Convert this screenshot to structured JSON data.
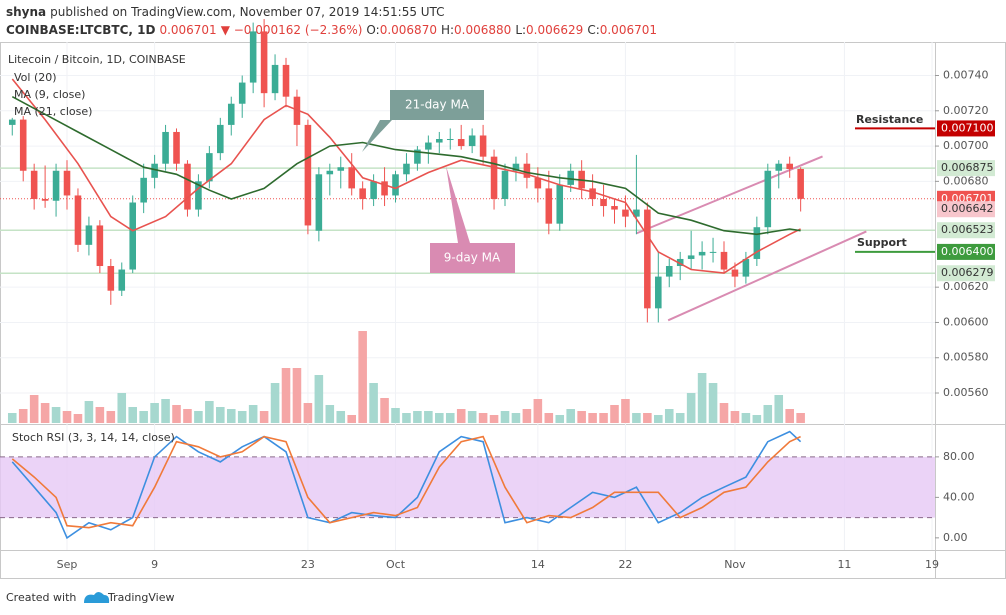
{
  "header": {
    "author": "shyna",
    "published": "published on TradingView.com, November 07, 2019 14:51:55 UTC",
    "symbol": "COINBASE:LTCBTC, 1D",
    "last": "0.006701",
    "change": "▼ −0.000162 (−2.36%)",
    "o_label": "O:",
    "o": "0.006870",
    "h_label": "H:",
    "h": "0.006880",
    "l_label": "L:",
    "l": "0.006629",
    "c_label": "C:",
    "c": "0.006701"
  },
  "legend": {
    "symbol": "Litecoin / Bitcoin, 1D, COINBASE",
    "vol": "Vol (20)",
    "ma9": "MA (9, close)",
    "ma21": "MA (21, close)"
  },
  "chart_data": [
    {
      "type": "candlestick",
      "up_color": "#3bac95",
      "down_color": "#ef5350",
      "volume_up_color": "#a6d8cf",
      "volume_down_color": "#f5a6a6",
      "x": [
        -5,
        -4,
        -3,
        -2,
        -1,
        0,
        1,
        2,
        3,
        4,
        5,
        6,
        7,
        8,
        9,
        10,
        11,
        12,
        13,
        14,
        15,
        16,
        17,
        18,
        19,
        20,
        21,
        22,
        23,
        24,
        25,
        26,
        27,
        28,
        29,
        30,
        31,
        32,
        33,
        34,
        35,
        36,
        37,
        38,
        39,
        40,
        41,
        42,
        43,
        44,
        45,
        46,
        47,
        48,
        49,
        50,
        51,
        52,
        53,
        54,
        55,
        56,
        57,
        58,
        59,
        60,
        61,
        62,
        63,
        64,
        65,
        66,
        67
      ],
      "ohlc": [
        [
          0.00712,
          0.00716,
          0.00706,
          0.00715
        ],
        [
          0.00715,
          0.00717,
          0.0068,
          0.00686
        ],
        [
          0.00686,
          0.0069,
          0.00664,
          0.0067
        ],
        [
          0.0067,
          0.00689,
          0.00665,
          0.00669
        ],
        [
          0.00669,
          0.0069,
          0.0066,
          0.00686
        ],
        [
          0.00686,
          0.00692,
          0.00664,
          0.00672
        ],
        [
          0.00672,
          0.00676,
          0.0064,
          0.00644
        ],
        [
          0.00644,
          0.0066,
          0.00638,
          0.00655
        ],
        [
          0.00655,
          0.00658,
          0.00628,
          0.00632
        ],
        [
          0.00632,
          0.00636,
          0.0061,
          0.00618
        ],
        [
          0.00618,
          0.00634,
          0.00615,
          0.0063
        ],
        [
          0.0063,
          0.00672,
          0.00628,
          0.00668
        ],
        [
          0.00668,
          0.0069,
          0.00662,
          0.00682
        ],
        [
          0.00682,
          0.00695,
          0.00676,
          0.0069
        ],
        [
          0.0069,
          0.00712,
          0.00686,
          0.00708
        ],
        [
          0.00708,
          0.0071,
          0.00686,
          0.0069
        ],
        [
          0.0069,
          0.00692,
          0.0066,
          0.00664
        ],
        [
          0.00664,
          0.00684,
          0.0066,
          0.0068
        ],
        [
          0.0068,
          0.007,
          0.00676,
          0.00696
        ],
        [
          0.00696,
          0.00716,
          0.00692,
          0.00712
        ],
        [
          0.00712,
          0.00728,
          0.00706,
          0.00724
        ],
        [
          0.00724,
          0.0074,
          0.00716,
          0.00736
        ],
        [
          0.00736,
          0.0077,
          0.0073,
          0.00765
        ],
        [
          0.00765,
          0.00772,
          0.00722,
          0.0073
        ],
        [
          0.0073,
          0.00752,
          0.00726,
          0.00746
        ],
        [
          0.00746,
          0.0075,
          0.00722,
          0.00728
        ],
        [
          0.00728,
          0.00732,
          0.007,
          0.00712
        ],
        [
          0.00712,
          0.00715,
          0.0065,
          0.00655
        ],
        [
          0.00652,
          0.00688,
          0.00646,
          0.00684
        ],
        [
          0.00684,
          0.0069,
          0.00672,
          0.00686
        ],
        [
          0.00686,
          0.00694,
          0.00676,
          0.00688
        ],
        [
          0.00688,
          0.00696,
          0.00672,
          0.00676
        ],
        [
          0.00676,
          0.0068,
          0.00664,
          0.0067
        ],
        [
          0.0067,
          0.00684,
          0.00666,
          0.0068
        ],
        [
          0.0068,
          0.00688,
          0.00666,
          0.00672
        ],
        [
          0.00672,
          0.00686,
          0.00668,
          0.00684
        ],
        [
          0.00684,
          0.00696,
          0.0068,
          0.0069
        ],
        [
          0.0069,
          0.007,
          0.00686,
          0.00698
        ],
        [
          0.00698,
          0.00706,
          0.0069,
          0.00702
        ],
        [
          0.00702,
          0.00708,
          0.00696,
          0.00704
        ],
        [
          0.00704,
          0.0071,
          0.00698,
          0.00704
        ],
        [
          0.00704,
          0.00712,
          0.00698,
          0.007
        ],
        [
          0.007,
          0.0071,
          0.00696,
          0.00706
        ],
        [
          0.00706,
          0.00712,
          0.0069,
          0.00694
        ],
        [
          0.00694,
          0.00698,
          0.00664,
          0.0067
        ],
        [
          0.0067,
          0.0069,
          0.00666,
          0.00686
        ],
        [
          0.00686,
          0.00694,
          0.0068,
          0.0069
        ],
        [
          0.0069,
          0.00696,
          0.00676,
          0.00682
        ],
        [
          0.00682,
          0.00688,
          0.00668,
          0.00676
        ],
        [
          0.00676,
          0.00686,
          0.0065,
          0.00656
        ],
        [
          0.00656,
          0.00684,
          0.00652,
          0.00678
        ],
        [
          0.00678,
          0.0069,
          0.00674,
          0.00686
        ],
        [
          0.00686,
          0.00692,
          0.0067,
          0.00676
        ],
        [
          0.00676,
          0.00684,
          0.00666,
          0.0067
        ],
        [
          0.0067,
          0.00678,
          0.0066,
          0.00666
        ],
        [
          0.00666,
          0.0067,
          0.00656,
          0.00664
        ],
        [
          0.00664,
          0.00672,
          0.00654,
          0.0066
        ],
        [
          0.0066,
          0.00695,
          0.0065,
          0.00664
        ],
        [
          0.00664,
          0.00668,
          0.006,
          0.00608
        ],
        [
          0.00608,
          0.0064,
          0.006,
          0.00626
        ],
        [
          0.00626,
          0.00636,
          0.0062,
          0.00632
        ],
        [
          0.00632,
          0.0064,
          0.00624,
          0.00636
        ],
        [
          0.00636,
          0.00652,
          0.0063,
          0.00638
        ],
        [
          0.00638,
          0.00646,
          0.0063,
          0.0064
        ],
        [
          0.0064,
          0.00648,
          0.00634,
          0.0064
        ],
        [
          0.0064,
          0.00646,
          0.00628,
          0.0063
        ],
        [
          0.0063,
          0.00634,
          0.0062,
          0.00626
        ],
        [
          0.00626,
          0.0064,
          0.00622,
          0.00636
        ],
        [
          0.00636,
          0.0066,
          0.00632,
          0.00654
        ],
        [
          0.00654,
          0.0069,
          0.0065,
          0.00686
        ],
        [
          0.00686,
          0.00692,
          0.00676,
          0.0069
        ],
        [
          0.0069,
          0.00694,
          0.00682,
          0.00687
        ],
        [
          0.00687,
          0.00688,
          0.006629,
          0.006701
        ]
      ],
      "volume": [
        10,
        14,
        28,
        20,
        16,
        12,
        9,
        22,
        16,
        12,
        30,
        16,
        12,
        20,
        24,
        18,
        14,
        12,
        22,
        16,
        14,
        12,
        18,
        12,
        40,
        55,
        55,
        20,
        48,
        18,
        12,
        8,
        92,
        40,
        25,
        15,
        10,
        12,
        12,
        10,
        10,
        14,
        12,
        10,
        8,
        12,
        10,
        14,
        24,
        10,
        8,
        14,
        12,
        10,
        10,
        18,
        24,
        10,
        10,
        8,
        14,
        10,
        30,
        50,
        40,
        20,
        12,
        10,
        8,
        18,
        28,
        14,
        10
      ],
      "xlim": [
        -6.12,
        79.27
      ],
      "xticks": [
        {
          "value": 0,
          "label": "Sep"
        },
        {
          "value": 8,
          "label": "9"
        },
        {
          "value": 22,
          "label": "23"
        },
        {
          "value": 30,
          "label": "Oct"
        },
        {
          "value": 43,
          "label": "14"
        },
        {
          "value": 51,
          "label": "22"
        },
        {
          "value": 61,
          "label": "Nov"
        },
        {
          "value": 71,
          "label": "11"
        },
        {
          "value": 79,
          "label": "19"
        }
      ],
      "ylim": [
        0.00543,
        0.00759
      ],
      "yticks": [
        {
          "value": 0.0074,
          "label": "0.00740"
        },
        {
          "value": 0.0072,
          "label": "0.00720"
        },
        {
          "value": 0.007,
          "label": "0.00700"
        },
        {
          "value": 0.0068,
          "label": "0.00680"
        },
        {
          "value": 0.0062,
          "label": "0.00620"
        },
        {
          "value": 0.006,
          "label": "0.00600"
        },
        {
          "value": 0.0058,
          "label": "0.00580"
        },
        {
          "value": 0.0056,
          "label": "0.00560"
        }
      ],
      "series": [
        {
          "name": "MA (9, close)",
          "color": "#e8534f",
          "x": [
            -5,
            -2,
            1,
            4,
            6,
            9,
            12,
            15,
            18,
            20,
            22,
            24,
            27,
            30,
            33,
            36,
            39,
            42,
            45,
            48,
            51,
            54,
            57,
            60,
            63,
            66,
            67
          ],
          "values": [
            0.00738,
            0.00715,
            0.0069,
            0.0066,
            0.00652,
            0.0066,
            0.00676,
            0.0069,
            0.00715,
            0.00723,
            0.00718,
            0.00705,
            0.00682,
            0.00676,
            0.00685,
            0.00692,
            0.00688,
            0.00684,
            0.00678,
            0.00674,
            0.00668,
            0.0064,
            0.0063,
            0.00628,
            0.0064,
            0.0065,
            0.00653
          ]
        },
        {
          "name": "MA (21, close)",
          "color": "#2e6b2e",
          "x": [
            -5,
            -2,
            1,
            4,
            7,
            10,
            13,
            15,
            18,
            21,
            24,
            27,
            30,
            33,
            36,
            39,
            42,
            45,
            48,
            51,
            54,
            57,
            60,
            63,
            66,
            67
          ],
          "values": [
            0.00728,
            0.00718,
            0.00708,
            0.00698,
            0.00688,
            0.00684,
            0.00675,
            0.0067,
            0.00676,
            0.0069,
            0.007,
            0.00702,
            0.00698,
            0.00696,
            0.00694,
            0.0069,
            0.00685,
            0.00682,
            0.0068,
            0.00676,
            0.00662,
            0.00658,
            0.00652,
            0.0065,
            0.00653,
            0.00652
          ]
        }
      ],
      "levels": [
        {
          "value": 0.0071,
          "label": "0.007100",
          "color": "#c40000",
          "text_color": "#ffffff",
          "line": "short"
        },
        {
          "value": 0.006875,
          "label": "0.006875",
          "color": "#d2ead3",
          "text_color": "#333333",
          "line": "full"
        },
        {
          "value": 0.006701,
          "label": "0.006701",
          "color": "#ef5350",
          "text_color": "#ffffff",
          "line": "dotted"
        },
        {
          "value": 0.006642,
          "label": "0.006642",
          "color": "#f7c6cc",
          "text_color": "#333333",
          "line": "none"
        },
        {
          "value": 0.006523,
          "label": "0.006523",
          "color": "#d2ead3",
          "text_color": "#333333",
          "line": "full"
        },
        {
          "value": 0.0064,
          "label": "0.006400",
          "color": "#3e9b3e",
          "text_color": "#ffffff",
          "line": "short"
        },
        {
          "value": 0.006279,
          "label": "0.006279",
          "color": "#d2ead3",
          "text_color": "#333333",
          "line": "full"
        }
      ],
      "trendlines": [
        {
          "color": "#d98bb2",
          "x": [
            52,
            69
          ],
          "values": [
            0.006505,
            0.006941
          ]
        },
        {
          "color": "#d98bb2",
          "x": [
            54.9,
            73
          ],
          "values": [
            0.006012,
            0.006516
          ]
        }
      ],
      "annotations": [
        "21-day MA",
        "9-day MA",
        "Resistance",
        "Support"
      ]
    },
    {
      "type": "line",
      "title": "Stoch RSI (3, 3, 14, 14, close)",
      "xlim": [
        -6.12,
        79.27
      ],
      "ylim": [
        -12,
        111.5
      ],
      "yticks": [
        {
          "value": 80,
          "label": "80.00"
        },
        {
          "value": 40,
          "label": "40.00"
        },
        {
          "value": 0,
          "label": "0.00"
        }
      ],
      "band": [
        20,
        80
      ],
      "band_color": "#e6c8f5",
      "series": [
        {
          "name": "K",
          "color": "#3d8fe0",
          "x": [
            -5,
            -3,
            -1,
            0,
            2,
            4,
            6,
            8,
            10,
            12,
            14,
            16,
            18,
            20,
            22,
            24,
            26,
            28,
            30,
            32,
            34,
            36,
            38,
            40,
            42,
            44,
            46,
            48,
            50,
            52,
            54,
            56,
            58,
            60,
            62,
            64,
            66,
            67
          ],
          "values": [
            75,
            50,
            25,
            0,
            15,
            8,
            20,
            80,
            100,
            85,
            75,
            90,
            100,
            85,
            20,
            15,
            25,
            22,
            20,
            40,
            85,
            100,
            95,
            15,
            20,
            15,
            30,
            45,
            40,
            50,
            15,
            25,
            40,
            50,
            60,
            95,
            105,
            95
          ]
        },
        {
          "name": "D",
          "color": "#f07a3a",
          "x": [
            -5,
            -3,
            -1,
            0,
            2,
            4,
            6,
            8,
            10,
            12,
            14,
            16,
            18,
            20,
            22,
            24,
            26,
            28,
            30,
            32,
            34,
            36,
            38,
            40,
            42,
            44,
            46,
            48,
            50,
            52,
            54,
            56,
            58,
            60,
            62,
            64,
            66,
            67
          ],
          "values": [
            78,
            60,
            40,
            12,
            10,
            15,
            12,
            50,
            95,
            90,
            80,
            85,
            100,
            95,
            40,
            15,
            20,
            25,
            22,
            30,
            70,
            95,
            100,
            50,
            15,
            22,
            20,
            30,
            45,
            45,
            45,
            20,
            30,
            45,
            50,
            75,
            95,
            100
          ]
        }
      ]
    }
  ],
  "footer": {
    "created": "Created with",
    "brand": "TradingView"
  }
}
